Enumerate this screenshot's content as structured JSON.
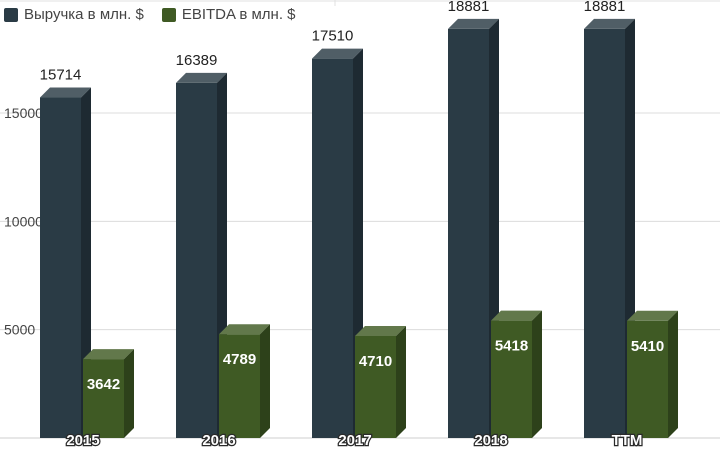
{
  "chart_data": {
    "type": "bar",
    "categories": [
      "2015",
      "2016",
      "2017",
      "2018",
      "TTM"
    ],
    "series": [
      {
        "name": "Выручка в млн. $",
        "values": [
          15714,
          16389,
          17510,
          18881,
          18881
        ],
        "color": "#2a3b45"
      },
      {
        "name": "EBITDA в млн. $",
        "values": [
          3642,
          4789,
          4710,
          5418,
          5410
        ],
        "color": "#3f5a24"
      }
    ],
    "ylim": [
      0,
      20000
    ],
    "yticks": [
      5000,
      10000,
      15000
    ],
    "grid": true,
    "legend": "top-left",
    "style": "3d"
  }
}
